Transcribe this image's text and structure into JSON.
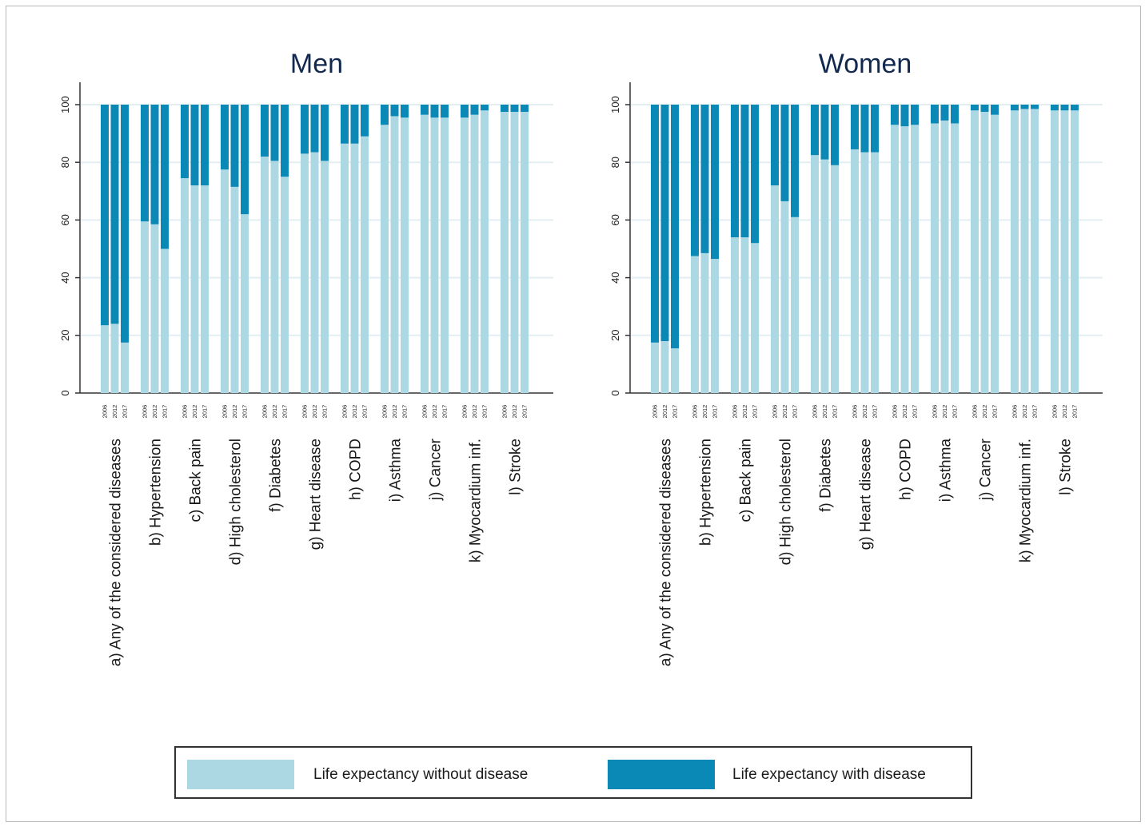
{
  "colors": {
    "without": "#acd8e4",
    "with": "#0a88b6",
    "axis": "#333333",
    "grid": "#e3eef2",
    "title": "#13284f"
  },
  "legend": {
    "without_label": "Life expectancy without disease",
    "with_label": "Life expectancy with disease"
  },
  "chart_data": [
    {
      "type": "bar",
      "stacked": true,
      "title": "Men",
      "ylim": [
        0,
        100
      ],
      "yticks": [
        0,
        20,
        40,
        60,
        80,
        100
      ],
      "grid": true,
      "years": [
        "2006",
        "2012",
        "2017"
      ],
      "categories": [
        "a) Any of the considered diseases",
        "b) Hypertension",
        "c) Back pain",
        "d) High cholesterol",
        "f) Diabetes",
        "g) Heart disease",
        "h) COPD",
        "i) Asthma",
        "j) Cancer",
        "k) Myocardium inf.",
        "l) Stroke"
      ],
      "series": [
        {
          "name": "Life expectancy without disease",
          "values": [
            [
              23.5,
              24,
              17.5
            ],
            [
              59.5,
              58.5,
              50
            ],
            [
              74.5,
              72,
              72
            ],
            [
              77.5,
              71.5,
              62
            ],
            [
              82,
              80.5,
              75
            ],
            [
              83,
              83.5,
              80.5
            ],
            [
              86.5,
              86.5,
              89
            ],
            [
              93,
              96,
              95.5
            ],
            [
              96.5,
              95.5,
              95.5
            ],
            [
              95.5,
              96.5,
              98
            ],
            [
              97.5,
              97.5,
              97.5
            ]
          ]
        },
        {
          "name": "Life expectancy with disease",
          "values": [
            [
              76.5,
              76,
              82.5
            ],
            [
              40.5,
              41.5,
              50
            ],
            [
              25.5,
              28,
              28
            ],
            [
              22.5,
              28.5,
              38
            ],
            [
              18,
              19.5,
              25
            ],
            [
              17,
              16.5,
              19.5
            ],
            [
              13.5,
              13.5,
              11
            ],
            [
              7,
              4,
              4.5
            ],
            [
              3.5,
              4.5,
              4.5
            ],
            [
              4.5,
              3.5,
              2
            ],
            [
              2.5,
              2.5,
              2.5
            ]
          ]
        }
      ]
    },
    {
      "type": "bar",
      "stacked": true,
      "title": "Women",
      "ylim": [
        0,
        100
      ],
      "yticks": [
        0,
        20,
        40,
        60,
        80,
        100
      ],
      "grid": true,
      "years": [
        "2006",
        "2012",
        "2017"
      ],
      "categories": [
        "a) Any of the considered diseases",
        "b) Hypertension",
        "c) Back pain",
        "d) High cholesterol",
        "f) Diabetes",
        "g) Heart disease",
        "h) COPD",
        "i) Asthma",
        "j) Cancer",
        "k) Myocardium inf.",
        "l) Stroke"
      ],
      "series": [
        {
          "name": "Life expectancy without disease",
          "values": [
            [
              17.5,
              18,
              15.5
            ],
            [
              47.5,
              48.5,
              46.5
            ],
            [
              54,
              54,
              52
            ],
            [
              72,
              66.5,
              61
            ],
            [
              82.5,
              81,
              79
            ],
            [
              84.5,
              83.5,
              83.5
            ],
            [
              93,
              92.5,
              93
            ],
            [
              93.5,
              94.5,
              93.5
            ],
            [
              98,
              97.5,
              96.5
            ],
            [
              98,
              98.5,
              98.5
            ],
            [
              98,
              98,
              98
            ]
          ]
        },
        {
          "name": "Life expectancy with disease",
          "values": [
            [
              82.5,
              82,
              84.5
            ],
            [
              52.5,
              51.5,
              53.5
            ],
            [
              46,
              46,
              48
            ],
            [
              28,
              33.5,
              39
            ],
            [
              17.5,
              19,
              21
            ],
            [
              15.5,
              16.5,
              16.5
            ],
            [
              7,
              7.5,
              7
            ],
            [
              6.5,
              5.5,
              6.5
            ],
            [
              2,
              2.5,
              3.5
            ],
            [
              2,
              1.5,
              1.5
            ],
            [
              2,
              2,
              2
            ]
          ]
        }
      ]
    }
  ]
}
